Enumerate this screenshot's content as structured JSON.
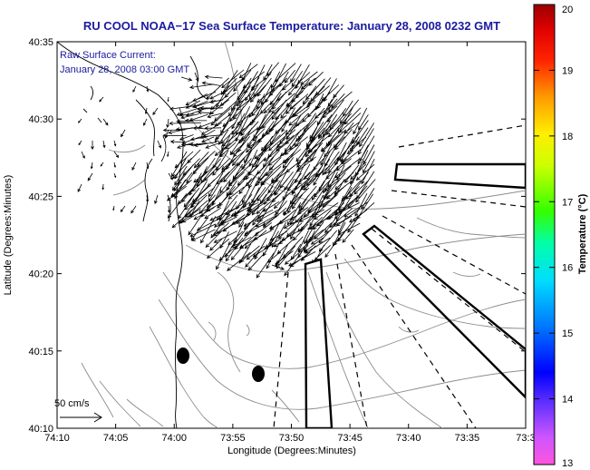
{
  "title": "RU COOL  NOAA−17  Sea Surface Temperature:  January 28, 2008 0232 GMT",
  "annotation": {
    "line1": "Raw Surface Current:",
    "line2": "January 28, 2008 03:00 GMT"
  },
  "scale_label": "50 cm/s",
  "x_axis": {
    "label": "Longitude (Degrees:Minutes)",
    "ticks": [
      "74:10",
      "74:05",
      "74:00",
      "73:55",
      "73:50",
      "73:45",
      "73:40",
      "73:35",
      "73:3"
    ]
  },
  "y_axis": {
    "label": "Latitude (Degrees:Minutes)",
    "ticks": [
      "40:35",
      "40:30",
      "40:25",
      "40:20",
      "40:15",
      "40:10"
    ]
  },
  "colorbar": {
    "label": "Temperature (°C)",
    "ticks": [
      "20",
      "19",
      "18",
      "17",
      "16",
      "15",
      "14",
      "13"
    ]
  },
  "colors": {
    "title": "#1a1aa0",
    "annotation": "#1a1aa0",
    "coast": "#000000",
    "bathymetry": "#8c8c8c"
  }
}
